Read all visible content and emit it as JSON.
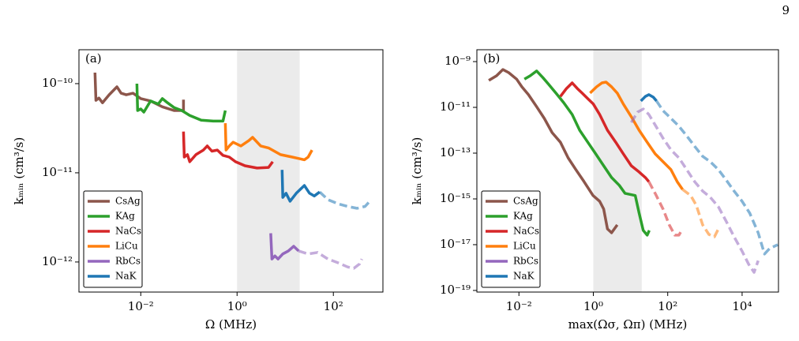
{
  "page_number": "9",
  "chart_data": [
    {
      "type": "line",
      "panel_label": "(a)",
      "x_label": "Ω (MHz)",
      "y_label": "kₘᵢₙ (cm³/s)",
      "log_x": true,
      "log_y": true,
      "legend": "lower left",
      "shaded_xrange": [
        1,
        20
      ],
      "xlim": [
        0.00052,
        1070
      ],
      "ylim": [
        4.6e-13,
        2.4e-10
      ],
      "xticks": [
        {
          "value": 0.01,
          "label": "10⁻²"
        },
        {
          "value": 1,
          "label": "10⁰"
        },
        {
          "value": 100,
          "label": "10²"
        }
      ],
      "yticks": [
        {
          "value": 1e-12,
          "label": "10⁻¹²"
        },
        {
          "value": 1e-11,
          "label": "10⁻¹¹"
        },
        {
          "value": 1e-10,
          "label": "10⁻¹⁰"
        }
      ],
      "series": [
        {
          "name": "CsAg",
          "color": "#8c564b",
          "segments": [
            {
              "style": "solid",
              "x": [
                0.00112,
                0.00117,
                0.00135,
                0.0016,
                0.0022,
                0.0032,
                0.0039,
                0.005,
                0.0069,
                0.01,
                0.016,
                0.028,
                0.049,
                0.077,
                0.077
              ],
              "values": [
                1.33e-10,
                6.5e-11,
                6.9e-11,
                6.1e-11,
                7.5e-11,
                9.2e-11,
                7.8e-11,
                7.5e-11,
                7.8e-11,
                6.8e-11,
                6.4e-11,
                5.5e-11,
                5e-11,
                5e-11,
                6.6e-11
              ]
            }
          ]
        },
        {
          "name": "KAg",
          "color": "#2ca02c",
          "segments": [
            {
              "style": "solid",
              "x": [
                0.0083,
                0.0086,
                0.01,
                0.0116,
                0.016,
                0.023,
                0.028,
                0.036,
                0.049,
                0.071,
                0.104,
                0.18,
                0.32,
                0.51,
                0.57
              ],
              "values": [
                1e-10,
                5e-11,
                5.2e-11,
                4.8e-11,
                6.4e-11,
                5.9e-11,
                6.8e-11,
                6.1e-11,
                5.4e-11,
                5e-11,
                4.4e-11,
                3.9e-11,
                3.8e-11,
                3.8e-11,
                5e-11
              ]
            }
          ]
        },
        {
          "name": "NaCs",
          "color": "#d62728",
          "segments": [
            {
              "style": "solid",
              "x": [
                0.077,
                0.08,
                0.093,
                0.104,
                0.14,
                0.2,
                0.24,
                0.3,
                0.39,
                0.51,
                0.69,
                0.93,
                1.46,
                2.6,
                4.5,
                5.5
              ],
              "values": [
                2.9e-11,
                1.5e-11,
                1.6e-11,
                1.33e-11,
                1.6e-11,
                1.8e-11,
                2e-11,
                1.75e-11,
                1.8e-11,
                1.57e-11,
                1.5e-11,
                1.33e-11,
                1.2e-11,
                1.13e-11,
                1.15e-11,
                1.33e-11
              ]
            }
          ]
        },
        {
          "name": "LiCu",
          "color": "#ff7f0e",
          "segments": [
            {
              "style": "solid",
              "x": [
                0.57,
                0.59,
                0.69,
                0.83,
                1.2,
                1.76,
                2.1,
                3.1,
                4.5,
                8.0,
                14,
                25,
                30,
                36
              ],
              "values": [
                3.6e-11,
                1.8e-11,
                2e-11,
                2.2e-11,
                2e-11,
                2.3e-11,
                2.5e-11,
                2e-11,
                1.9e-11,
                1.6e-11,
                1.5e-11,
                1.4e-11,
                1.5e-11,
                1.8e-11
              ]
            }
          ]
        },
        {
          "name": "RbCs",
          "color": "#9467bd",
          "segments": [
            {
              "style": "solid",
              "x": [
                5.0,
                5.3,
                6.1,
                7.1,
                8.9,
                11.6,
                15,
                19
              ],
              "values": [
                2.1e-12,
                1.08e-12,
                1.17e-12,
                1.08e-12,
                1.23e-12,
                1.33e-12,
                1.5e-12,
                1.33e-12
              ]
            },
            {
              "style": "dashed",
              "x": [
                19,
                30,
                47,
                77,
                125,
                198,
                267,
                350,
                390
              ],
              "values": [
                1.33e-12,
                1.23e-12,
                1.28e-12,
                1.08e-12,
                9.8e-13,
                8.8e-13,
                8.5e-13,
                9.5e-13,
                1.08e-12
              ]
            }
          ]
        },
        {
          "name": "NaK",
          "color": "#1f77b4",
          "segments": [
            {
              "style": "solid",
              "x": [
                8.6,
                8.9,
                10.4,
                12.6,
                17,
                25,
                32,
                40,
                52
              ],
              "values": [
                1.08e-11,
                5.3e-12,
                5.9e-12,
                4.8e-12,
                5.9e-12,
                7.2e-12,
                5.9e-12,
                5.5e-12,
                6.1e-12
              ]
            },
            {
              "style": "dashed",
              "x": [
                52,
                77,
                125,
                198,
                310,
                455,
                550
              ],
              "values": [
                6.1e-12,
                5e-12,
                4.5e-12,
                4.2e-12,
                4e-12,
                4.2e-12,
                4.7e-12
              ]
            }
          ]
        }
      ]
    },
    {
      "type": "line",
      "panel_label": "(b)",
      "x_label": "max(Ωσ, Ωπ) (MHz)",
      "y_label": "kₘᵢₙ (cm³/s)",
      "log_x": true,
      "log_y": true,
      "legend": "lower left",
      "shaded_xrange": [
        1,
        20
      ],
      "xlim": [
        0.00074,
        95000
      ],
      "ylim": [
        8.5e-20,
        3.3e-09
      ],
      "xticks": [
        {
          "value": 0.01,
          "label": "10⁻²"
        },
        {
          "value": 1,
          "label": "10⁰"
        },
        {
          "value": 100,
          "label": "10²"
        },
        {
          "value": 10000,
          "label": "10⁴"
        }
      ],
      "yticks": [
        {
          "value": 1e-19,
          "label": "10⁻¹⁹"
        },
        {
          "value": 1e-17,
          "label": "10⁻¹⁷"
        },
        {
          "value": 1e-15,
          "label": "10⁻¹⁵"
        },
        {
          "value": 1e-13,
          "label": "10⁻¹³"
        },
        {
          "value": 1e-11,
          "label": "10⁻¹¹"
        },
        {
          "value": 1e-09,
          "label": "10⁻⁹"
        }
      ],
      "series": [
        {
          "name": "CsAg",
          "color": "#8c564b",
          "segments": [
            {
              "style": "solid",
              "x": [
                0.00155,
                0.0025,
                0.0037,
                0.0053,
                0.0087,
                0.012,
                0.018,
                0.03,
                0.048,
                0.078,
                0.13,
                0.21,
                0.34,
                0.56,
                0.98,
                1.48,
                1.9,
                2.4,
                3.1,
                4.4
              ],
              "values": [
                1.5e-10,
                2.4e-10,
                4.5e-10,
                3.3e-10,
                1.7e-10,
                7.9e-11,
                3.6e-11,
                1.07e-11,
                3.3e-12,
                7.9e-13,
                3e-13,
                6.2e-14,
                1.9e-14,
                5.8e-15,
                1.4e-15,
                7.9e-16,
                3.6e-16,
                4.9e-17,
                3.3e-17,
                7.3e-17
              ]
            }
          ]
        },
        {
          "name": "KAg",
          "color": "#2ca02c",
          "segments": [
            {
              "style": "solid",
              "x": [
                0.014,
                0.02,
                0.03,
                0.044,
                0.061,
                0.1,
                0.16,
                0.27,
                0.43,
                0.71,
                1.16,
                1.9,
                3.1,
                5.0,
                7.1,
                13.4,
                17,
                22,
                28,
                32
              ],
              "values": [
                1.7e-10,
                2.4e-10,
                3.9e-10,
                2e-10,
                1.08e-10,
                4.1e-11,
                1.6e-11,
                4.9e-12,
                1e-12,
                3e-13,
                9.3e-14,
                2.8e-14,
                8.6e-15,
                3.9e-15,
                1.75e-15,
                1.4e-15,
                2.4e-16,
                4.2e-17,
                2.6e-17,
                4.2e-17
              ]
            }
          ]
        },
        {
          "name": "NaCs",
          "color": "#d62728",
          "segments": [
            {
              "style": "solid",
              "x": [
                0.13,
                0.19,
                0.27,
                0.37,
                0.5,
                0.71,
                1.0,
                1.48,
                2.4,
                4.0,
                6.4,
                10.5,
                17,
                25,
                31
              ],
              "values": [
                3e-11,
                6.7e-11,
                1.17e-10,
                6.7e-11,
                4.2e-11,
                2.4e-11,
                1.4e-11,
                4.9e-12,
                1e-12,
                3e-13,
                9.3e-14,
                2.8e-14,
                1.5e-14,
                8.6e-15,
                5.7e-15
              ]
            },
            {
              "style": "dashed",
              "x": [
                31,
                46,
                75,
                110,
                155,
                200,
                250
              ],
              "values": [
                5.7e-15,
                1.75e-15,
                3.6e-16,
                7.3e-17,
                2.6e-17,
                2.6e-17,
                4.9e-17
              ]
            }
          ]
        },
        {
          "name": "LiCu",
          "color": "#ff7f0e",
          "segments": [
            {
              "style": "solid",
              "x": [
                0.82,
                1.22,
                1.7,
                2.2,
                3.1,
                4.4,
                6.4,
                10.5,
                17,
                28,
                46,
                75,
                122,
                180,
                250
              ],
              "values": [
                4.2e-11,
                7.9e-11,
                1.17e-10,
                1.27e-10,
                7.9e-11,
                4.2e-11,
                1.4e-11,
                3.9e-12,
                1e-12,
                3e-13,
                9.3e-14,
                4.2e-14,
                1.9e-14,
                5.7e-15,
                2.6e-15
              ]
            },
            {
              "style": "dashed",
              "x": [
                250,
                415,
                585,
                870,
                1280,
                1800,
                2300
              ],
              "values": [
                2.6e-15,
                1.4e-15,
                5.3e-16,
                7.3e-17,
                2.8e-17,
                2.2e-17,
                4.9e-17
              ]
            }
          ]
        },
        {
          "name": "RbCs",
          "color": "#9467bd",
          "segments": [
            {
              "style": "dashed",
              "x": [
                10.5,
                15.5,
                22,
                31,
                46,
                75,
                122,
                200,
                325,
                530,
                870,
                1400,
                2300,
                3700,
                6100,
                10000,
                15000,
                21000,
                27000
              ],
              "values": [
                2.2e-12,
                6.2e-12,
                8.5e-12,
                4.9e-12,
                1.7e-12,
                4.5e-13,
                1.4e-13,
                6.2e-14,
                1.9e-14,
                5.7e-15,
                2.2e-15,
                1.17e-15,
                4.5e-16,
                1.08e-16,
                2.2e-17,
                5.2e-18,
                1.4e-18,
                6.2e-19,
                2e-18
              ]
            }
          ]
        },
        {
          "name": "NaK",
          "color": "#1f77b4",
          "segments": [
            {
              "style": "solid",
              "x": [
                19,
                25,
                31,
                41,
                50
              ],
              "values": [
                1.9e-11,
                3e-11,
                3.6e-11,
                2.8e-11,
                1.9e-11
              ]
            },
            {
              "style": "dashed",
              "x": [
                50,
                75,
                122,
                200,
                325,
                530,
                870,
                1400,
                2300,
                3700,
                6100,
                10000,
                16000,
                27000,
                40000,
                55000,
                91000
              ],
              "values": [
                1.9e-11,
                7.2e-12,
                3.3e-12,
                1.5e-12,
                5.7e-13,
                2e-13,
                7.2e-14,
                4.2e-14,
                1.9e-14,
                6.8e-15,
                2.2e-15,
                7.9e-16,
                2.4e-16,
                3.3e-17,
                3.9e-18,
                6.8e-18,
                1e-17
              ]
            }
          ]
        }
      ]
    }
  ]
}
